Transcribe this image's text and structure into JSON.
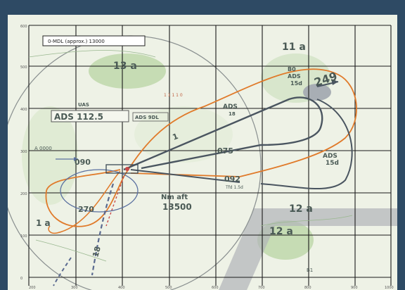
{
  "map": {
    "legend_box": "0-MDL (approx.) 13000",
    "sectors": {
      "s13a": "13 a",
      "s11a": "11 a",
      "s12a_right": "12 a",
      "s12a_bottom": "12 a",
      "s1a": "1 a"
    },
    "vor": {
      "name": "ADS 112.5",
      "freq_box": "ADS 9DL"
    },
    "bearings": {
      "b249": "249",
      "b075": "075",
      "b092": "092",
      "b090": "090",
      "b270": "270",
      "b18": "18",
      "b1": "1"
    },
    "altitude": {
      "top": "Nm aft",
      "value": "13500"
    },
    "labels": {
      "ads_top": "ADS",
      "ads_top_sub": "18",
      "ads_right": "ADS",
      "ads_right_sub": "15d",
      "ads_upper_right": "B0",
      "ads_upper_right_2": "ADS",
      "ads_upper_right_3": "15d",
      "small_1": "1 1 1 1  0",
      "small_2": "Tfd 1.5d",
      "small_left": "UAS",
      "fix_left": "A 0000",
      "grid_small": "B1"
    },
    "ticks_x": [
      "200",
      "300",
      "400",
      "500",
      "600",
      "700",
      "800",
      "900",
      "1000"
    ],
    "ticks_y": [
      "600",
      "500",
      "400",
      "300",
      "200",
      "100",
      "0"
    ],
    "colors": {
      "track_dark": "#4a5560",
      "track_orange": "#e07a2a",
      "circle_gray": "#8a9090",
      "terrain": "#b8d4a8"
    }
  }
}
